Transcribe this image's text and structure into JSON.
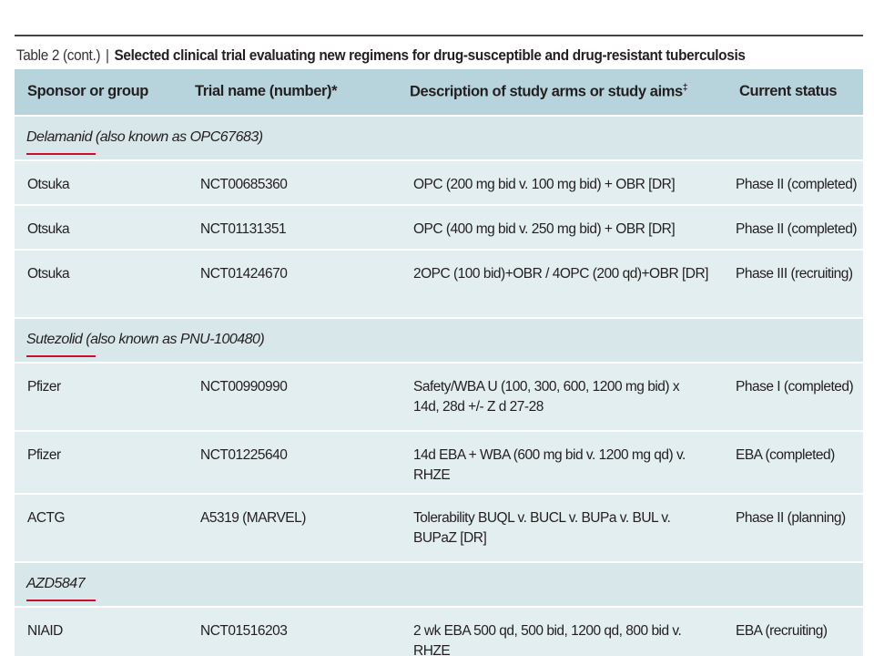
{
  "table": {
    "label": "Table 2 (cont.)",
    "separator": "|",
    "title": "Selected clinical trial evaluating new regimens for drug-susceptible and drug-resistant tuberculosis",
    "headers": {
      "sponsor": "Sponsor or group",
      "trial": "Trial name (number)*",
      "description": "Description of study arms or study aims",
      "description_mark": "‡",
      "status": "Current status"
    },
    "groups": [
      {
        "name": "Delamanid (also known as OPC67683)",
        "rows": [
          {
            "sponsor": "Otsuka",
            "trial": "NCT00685360",
            "description": "OPC (200 mg bid v. 100 mg bid) + OBR [DR]",
            "status": "Phase II (completed)"
          },
          {
            "sponsor": "Otsuka",
            "trial": "NCT01131351",
            "description": "OPC (400 mg bid v. 250 mg bid) + OBR [DR]",
            "status": "Phase II (completed)"
          },
          {
            "sponsor": "Otsuka",
            "trial": "NCT01424670",
            "description": "2OPC (100 bid)+OBR / 4OPC (200 qd)+OBR [DR]",
            "status": "Phase III (recruiting)"
          }
        ]
      },
      {
        "name": "Sutezolid (also known as PNU-100480)",
        "rows": [
          {
            "sponsor": "Pfizer",
            "trial": "NCT00990990",
            "description": "Safety/WBA U (100, 300, 600, 1200 mg bid) x 14d, 28d +/- Z d 27-28",
            "status": "Phase I (completed)"
          },
          {
            "sponsor": "Pfizer",
            "trial": "NCT01225640",
            "description": "14d EBA + WBA (600 mg bid v. 1200 mg qd) v. RHZE",
            "status": "EBA (completed)"
          },
          {
            "sponsor": "ACTG",
            "trial": "A5319 (MARVEL)",
            "description": "Tolerability BUQL v. BUCL v. BUPa v. BUL v. BUPaZ [DR]",
            "status": "Phase II (planning)"
          }
        ]
      },
      {
        "name": "AZD5847",
        "rows": [
          {
            "sponsor": "NIAID",
            "trial": "NCT01516203",
            "description": "2 wk EBA 500 qd, 500 bid, 1200 qd, 800 bid v. RHZE",
            "status": "EBA (recruiting)"
          }
        ]
      }
    ]
  },
  "colors": {
    "header_bg": "#b7d4dc",
    "group_bg": "#d8e7ea",
    "row_bg": "#e3eef0",
    "accent_underline": "#c8102e"
  }
}
